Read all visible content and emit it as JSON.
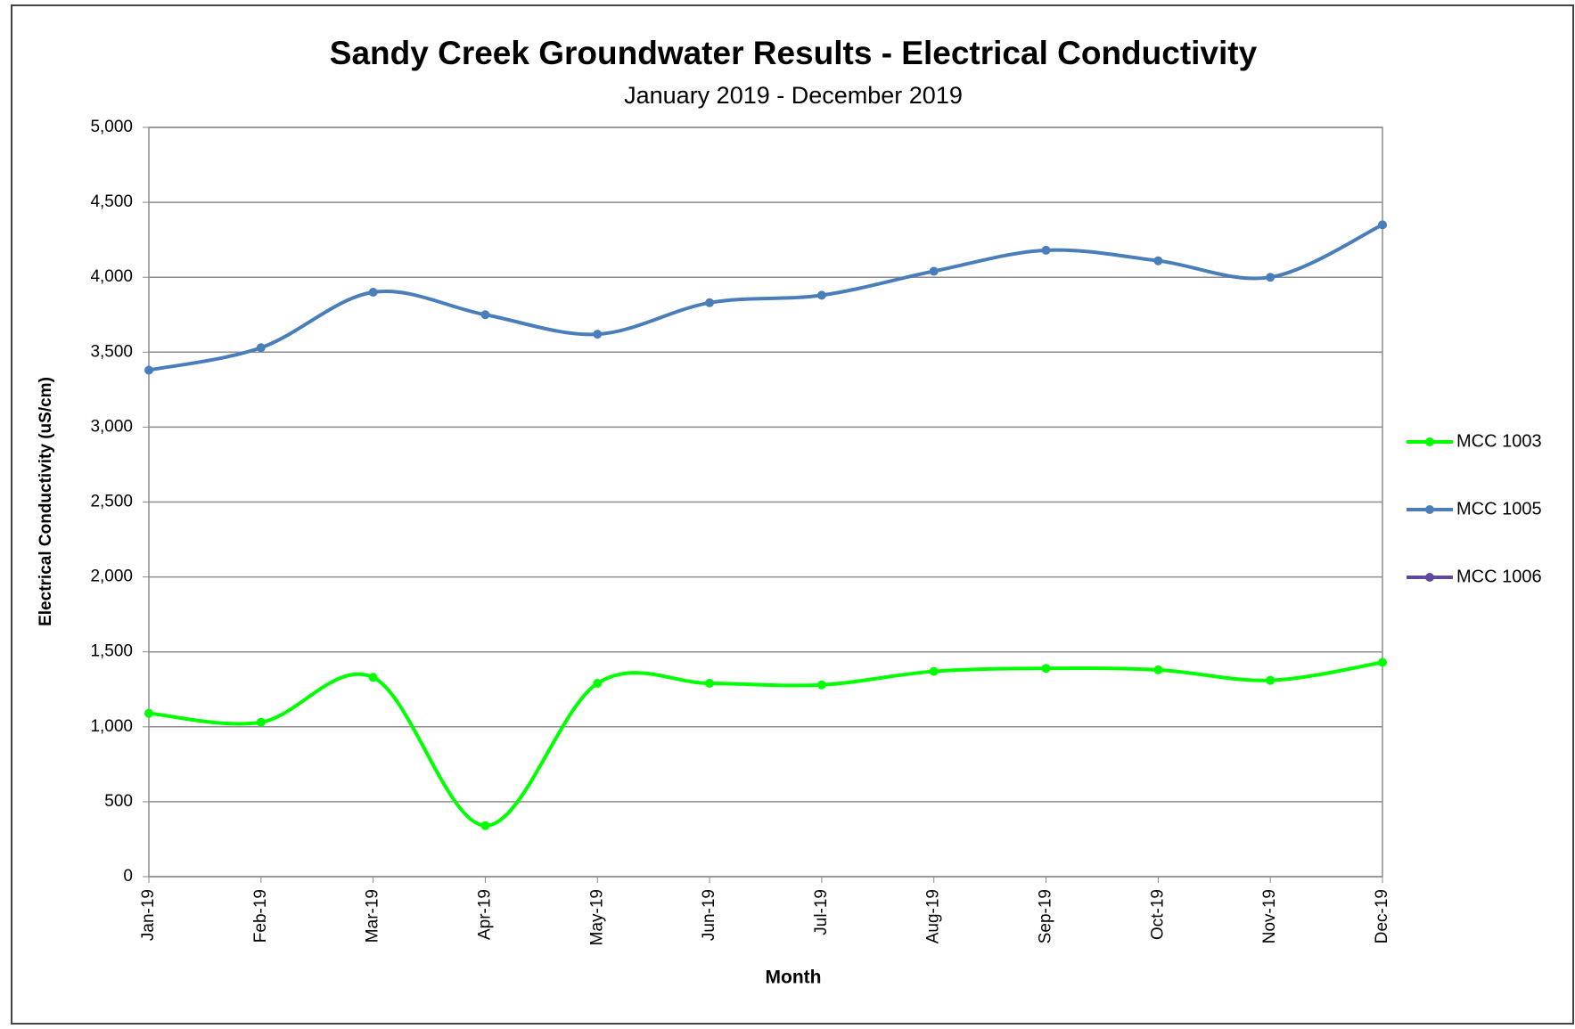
{
  "chart_data": {
    "type": "line",
    "title": "Sandy Creek Groundwater Results - Electrical Conductivity",
    "subtitle": "January 2019 - December 2019",
    "x_label": "Month",
    "y_label": "Electrical Conductivity (uS/cm)",
    "categories": [
      "Jan-19",
      "Feb-19",
      "Mar-19",
      "Apr-19",
      "May-19",
      "Jun-19",
      "Jul-19",
      "Aug-19",
      "Sep-19",
      "Oct-19",
      "Nov-19",
      "Dec-19"
    ],
    "series": [
      {
        "name": "MCC 1003",
        "color": "#00ff00",
        "values": [
          1090,
          1030,
          1330,
          340,
          1290,
          1290,
          1280,
          1370,
          1390,
          1380,
          1310,
          1430
        ]
      },
      {
        "name": "MCC 1005",
        "color": "#4a7ebb",
        "values": [
          3380,
          3530,
          3900,
          3750,
          3620,
          3830,
          3880,
          4040,
          4180,
          4110,
          4000,
          4350
        ]
      },
      {
        "name": "MCC 1006",
        "color": "#604a9b",
        "values": [
          null,
          null,
          null,
          null,
          null,
          null,
          null,
          null,
          null,
          null,
          null,
          null
        ]
      }
    ],
    "ylim": [
      0,
      5000
    ],
    "yticks": [
      0,
      500,
      {
        "value": 1000,
        "label": "1,000"
      },
      {
        "value": 1500,
        "label": "1,500"
      },
      {
        "value": 2000,
        "label": "2,000"
      },
      {
        "value": 2500,
        "label": "2,500"
      },
      {
        "value": 3000,
        "label": "3,000"
      },
      {
        "value": 3500,
        "label": "3,500"
      },
      {
        "value": 4000,
        "label": "4,000"
      },
      {
        "value": 4500,
        "label": "4,500"
      },
      {
        "value": 5000,
        "label": "5,000"
      }
    ],
    "grid": true,
    "legend": "right"
  }
}
